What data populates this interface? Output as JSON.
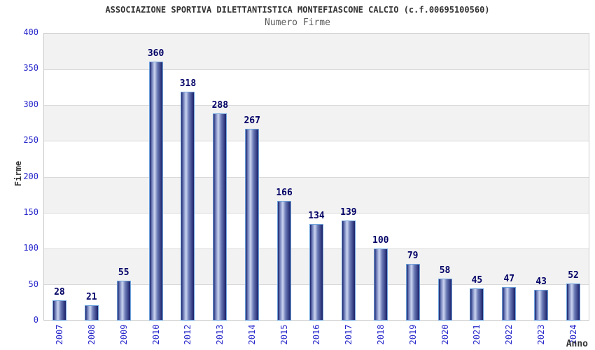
{
  "chart_data": {
    "type": "bar",
    "title": "ASSOCIAZIONE SPORTIVA DILETTANTISTICA MONTEFIASCONE CALCIO (c.f.00695100560)",
    "subtitle": "Numero Firme",
    "categories": [
      "2007",
      "2008",
      "2009",
      "2010",
      "2012",
      "2013",
      "2014",
      "2015",
      "2016",
      "2017",
      "2018",
      "2019",
      "2020",
      "2021",
      "2022",
      "2023",
      "2024"
    ],
    "values": [
      28,
      21,
      55,
      360,
      318,
      288,
      267,
      166,
      134,
      139,
      100,
      79,
      58,
      45,
      47,
      43,
      52
    ],
    "xlabel": "Anno",
    "ylabel": "Firme",
    "ylim": [
      0,
      400
    ],
    "yticks": [
      0,
      50,
      100,
      150,
      200,
      250,
      300,
      350,
      400
    ],
    "grid": "horizontal-bands-alternating",
    "legend": "none",
    "colors": {
      "title": "#333333",
      "subtitle": "#595959",
      "tick_label": "#2626cc",
      "value_label": "#000066",
      "band_gray": "#f2f2f2",
      "band_white": "#ffffff",
      "grid_line": "#d9d9d9",
      "plot_border": "#cccccc",
      "bar_dark": "#1a2169",
      "bar_mid": "#6d7cb8",
      "bar_light": "#ccd5f0",
      "bar_border": "#6fa5de"
    }
  }
}
